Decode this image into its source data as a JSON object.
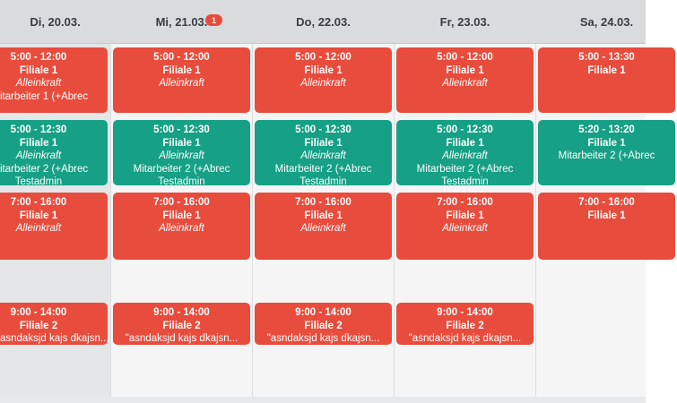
{
  "days": [
    {
      "label": "Di, 20.03."
    },
    {
      "label": "Mi, 21.03.",
      "badge": "1"
    },
    {
      "label": "Do, 22.03."
    },
    {
      "label": "Fr, 23.03."
    },
    {
      "label": "Sa, 24.03."
    }
  ],
  "shifts": {
    "d0": [
      {
        "time": "5:00 - 12:00",
        "branch": "Filiale 1",
        "role": "Alleinkraft",
        "person": "itarbeiter 1 (+Abrec"
      },
      {
        "time": "5:00 - 12:30",
        "branch": "Filiale 1",
        "role": "Alleinkraft",
        "person": "itarbeiter 2 (+Abrec",
        "admin": "Testadmin"
      },
      {
        "time": "7:00 - 16:00",
        "branch": "Filiale 1",
        "role": "Alleinkraft"
      },
      {
        "time": "9:00 - 14:00",
        "branch": "Filiale 2",
        "note": "asndaksjd kajs dkajsn..."
      }
    ],
    "d1": [
      {
        "time": "5:00 - 12:00",
        "branch": "Filiale 1",
        "role": "Alleinkraft"
      },
      {
        "time": "5:00 - 12:30",
        "branch": "Filiale 1",
        "role": "Alleinkraft",
        "person": "Mitarbeiter 2 (+Abrec",
        "admin": "Testadmin"
      },
      {
        "time": "7:00 - 16:00",
        "branch": "Filiale 1",
        "role": "Alleinkraft"
      },
      {
        "time": "9:00 - 14:00",
        "branch": "Filiale 2",
        "note": "\"asndaksjd kajs dkajsn..."
      }
    ],
    "d2": [
      {
        "time": "5:00 - 12:00",
        "branch": "Filiale 1",
        "role": "Alleinkraft"
      },
      {
        "time": "5:00 - 12:30",
        "branch": "Filiale 1",
        "role": "Alleinkraft",
        "person": "Mitarbeiter 2 (+Abrec",
        "admin": "Testadmin"
      },
      {
        "time": "7:00 - 16:00",
        "branch": "Filiale 1",
        "role": "Alleinkraft"
      },
      {
        "time": "9:00 - 14:00",
        "branch": "Filiale 2",
        "note": "\"asndaksjd kajs dkajsn..."
      }
    ],
    "d3": [
      {
        "time": "5:00 - 12:00",
        "branch": "Filiale 1",
        "role": "Alleinkraft"
      },
      {
        "time": "5:00 - 12:30",
        "branch": "Filiale 1",
        "role": "Alleinkraft",
        "person": "Mitarbeiter 2 (+Abrec",
        "admin": "Testadmin"
      },
      {
        "time": "7:00 - 16:00",
        "branch": "Filiale 1",
        "role": "Alleinkraft"
      },
      {
        "time": "9:00 - 14:00",
        "branch": "Filiale 2",
        "note": "\"asndaksjd kajs dkajsn..."
      }
    ],
    "d4": [
      {
        "time": "5:00 - 13:30",
        "branch": "Filiale 1"
      },
      {
        "time": "5:20 - 13:20",
        "branch": "Filiale 1",
        "person": "Mitarbeiter 2 (+Abrec"
      },
      {
        "time": "7:00 - 16:00",
        "branch": "Filiale 1"
      }
    ]
  },
  "colors": {
    "red": "#e74c3c",
    "green": "#16a085"
  }
}
